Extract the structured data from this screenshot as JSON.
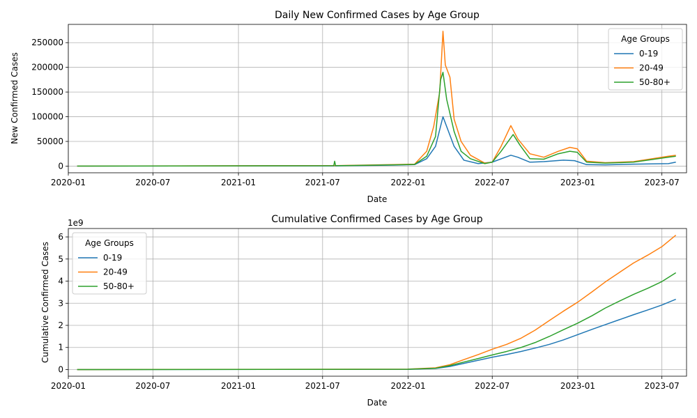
{
  "colors": {
    "c0": "#1f77b4",
    "c1": "#ff7f0e",
    "c2": "#2ca02c"
  },
  "chart_data": [
    {
      "type": "line",
      "title": "Daily New Confirmed Cases by Age Group",
      "xlabel": "Date",
      "ylabel": "New Confirmed Cases",
      "x_start": "2020-01-20",
      "x_end": "2023-07-31",
      "xlim": [
        "2020-01-01",
        "2023-08-23"
      ],
      "ylim": [
        -13500,
        287000
      ],
      "xticks": [
        "2020-01",
        "2020-07",
        "2021-01",
        "2021-07",
        "2022-01",
        "2022-07",
        "2023-01",
        "2023-07"
      ],
      "yticks": [
        0,
        50000,
        100000,
        150000,
        200000,
        250000
      ],
      "ytick_labels": [
        "0",
        "50000",
        "100000",
        "150000",
        "200000",
        "250000"
      ],
      "grid": true,
      "legend": {
        "title": "Age Groups",
        "position": "top-right"
      },
      "series": [
        {
          "name": "0-19",
          "color": "#1f77b4",
          "points": [
            [
              "2020-01-20",
              0
            ],
            [
              "2021-07-27",
              500
            ],
            [
              "2021-12-01",
              2000
            ],
            [
              "2022-01-15",
              3000
            ],
            [
              "2022-02-10",
              15000
            ],
            [
              "2022-03-01",
              40000
            ],
            [
              "2022-03-17",
              100000
            ],
            [
              "2022-03-25",
              80000
            ],
            [
              "2022-04-10",
              40000
            ],
            [
              "2022-05-01",
              12000
            ],
            [
              "2022-06-01",
              5000
            ],
            [
              "2022-07-01",
              8000
            ],
            [
              "2022-08-10",
              22000
            ],
            [
              "2022-08-25",
              18000
            ],
            [
              "2022-09-20",
              8000
            ],
            [
              "2022-10-20",
              9000
            ],
            [
              "2022-12-01",
              12000
            ],
            [
              "2022-12-25",
              11000
            ],
            [
              "2023-01-20",
              3000
            ],
            [
              "2023-03-01",
              2500
            ],
            [
              "2023-05-01",
              4000
            ],
            [
              "2023-07-15",
              5000
            ],
            [
              "2023-07-31",
              8000
            ]
          ]
        },
        {
          "name": "20-49",
          "color": "#ff7f0e",
          "points": [
            [
              "2020-01-20",
              0
            ],
            [
              "2021-07-27",
              1000
            ],
            [
              "2021-12-01",
              3000
            ],
            [
              "2022-01-15",
              4000
            ],
            [
              "2022-02-10",
              30000
            ],
            [
              "2022-02-25",
              80000
            ],
            [
              "2022-03-10",
              150000
            ],
            [
              "2022-03-17",
              273000
            ],
            [
              "2022-03-22",
              205000
            ],
            [
              "2022-04-01",
              180000
            ],
            [
              "2022-04-10",
              95000
            ],
            [
              "2022-04-25",
              50000
            ],
            [
              "2022-05-15",
              22000
            ],
            [
              "2022-06-15",
              6000
            ],
            [
              "2022-07-01",
              8000
            ],
            [
              "2022-07-20",
              40000
            ],
            [
              "2022-08-10",
              82000
            ],
            [
              "2022-08-25",
              55000
            ],
            [
              "2022-09-20",
              25000
            ],
            [
              "2022-10-20",
              18000
            ],
            [
              "2022-11-20",
              30000
            ],
            [
              "2022-12-15",
              38000
            ],
            [
              "2022-12-31",
              35000
            ],
            [
              "2023-01-20",
              10000
            ],
            [
              "2023-03-01",
              7000
            ],
            [
              "2023-05-01",
              9000
            ],
            [
              "2023-07-15",
              20000
            ],
            [
              "2023-07-31",
              22000
            ]
          ]
        },
        {
          "name": "50-80+",
          "color": "#2ca02c",
          "points": [
            [
              "2020-01-20",
              0
            ],
            [
              "2021-07-25",
              800
            ],
            [
              "2021-07-27",
              10000
            ],
            [
              "2021-07-29",
              800
            ],
            [
              "2021-12-01",
              2500
            ],
            [
              "2022-01-15",
              3500
            ],
            [
              "2022-02-10",
              20000
            ],
            [
              "2022-03-01",
              60000
            ],
            [
              "2022-03-12",
              175000
            ],
            [
              "2022-03-17",
              190000
            ],
            [
              "2022-03-25",
              135000
            ],
            [
              "2022-04-10",
              70000
            ],
            [
              "2022-04-25",
              30000
            ],
            [
              "2022-05-15",
              15000
            ],
            [
              "2022-06-15",
              5000
            ],
            [
              "2022-07-01",
              8000
            ],
            [
              "2022-07-20",
              30000
            ],
            [
              "2022-08-15",
              64000
            ],
            [
              "2022-08-30",
              42000
            ],
            [
              "2022-09-20",
              15000
            ],
            [
              "2022-10-20",
              14000
            ],
            [
              "2022-11-20",
              25000
            ],
            [
              "2022-12-15",
              30000
            ],
            [
              "2022-12-31",
              28000
            ],
            [
              "2023-01-20",
              8000
            ],
            [
              "2023-03-01",
              6000
            ],
            [
              "2023-05-01",
              8000
            ],
            [
              "2023-07-15",
              18000
            ],
            [
              "2023-07-31",
              20000
            ]
          ]
        }
      ]
    },
    {
      "type": "line",
      "title": "Cumulative Confirmed Cases by Age Group",
      "xlabel": "Date",
      "ylabel": "Cumulative Confirmed Cases",
      "y_multiplier_label": "1e9",
      "xlim": [
        "2020-01-01",
        "2023-08-23"
      ],
      "ylim": [
        -0.3,
        6.38
      ],
      "xticks": [
        "2020-01",
        "2020-07",
        "2021-01",
        "2021-07",
        "2022-01",
        "2022-07",
        "2023-01",
        "2023-07"
      ],
      "yticks": [
        0,
        1,
        2,
        3,
        4,
        5,
        6
      ],
      "ytick_labels": [
        "0",
        "1",
        "2",
        "3",
        "4",
        "5",
        "6"
      ],
      "grid": true,
      "legend": {
        "title": "Age Groups",
        "position": "top-left"
      },
      "series": [
        {
          "name": "0-19",
          "color": "#1f77b4",
          "points": [
            [
              "2020-01-20",
              0
            ],
            [
              "2021-12-31",
              0.01
            ],
            [
              "2022-03-01",
              0.05
            ],
            [
              "2022-04-01",
              0.14
            ],
            [
              "2022-05-01",
              0.28
            ],
            [
              "2022-06-01",
              0.42
            ],
            [
              "2022-07-01",
              0.56
            ],
            [
              "2022-08-01",
              0.68
            ],
            [
              "2022-09-01",
              0.82
            ],
            [
              "2022-10-01",
              0.97
            ],
            [
              "2022-11-01",
              1.14
            ],
            [
              "2022-12-01",
              1.34
            ],
            [
              "2023-01-01",
              1.58
            ],
            [
              "2023-02-01",
              1.82
            ],
            [
              "2023-03-01",
              2.03
            ],
            [
              "2023-04-01",
              2.26
            ],
            [
              "2023-05-01",
              2.48
            ],
            [
              "2023-06-01",
              2.7
            ],
            [
              "2023-07-01",
              2.92
            ],
            [
              "2023-07-31",
              3.18
            ]
          ]
        },
        {
          "name": "20-49",
          "color": "#ff7f0e",
          "points": [
            [
              "2020-01-20",
              0
            ],
            [
              "2021-12-31",
              0.02
            ],
            [
              "2022-03-01",
              0.08
            ],
            [
              "2022-04-01",
              0.22
            ],
            [
              "2022-05-01",
              0.45
            ],
            [
              "2022-06-01",
              0.68
            ],
            [
              "2022-07-01",
              0.92
            ],
            [
              "2022-08-01",
              1.14
            ],
            [
              "2022-09-01",
              1.42
            ],
            [
              "2022-10-01",
              1.78
            ],
            [
              "2022-11-01",
              2.22
            ],
            [
              "2022-12-01",
              2.64
            ],
            [
              "2023-01-01",
              3.05
            ],
            [
              "2023-02-01",
              3.52
            ],
            [
              "2023-03-01",
              3.96
            ],
            [
              "2023-04-01",
              4.4
            ],
            [
              "2023-05-01",
              4.82
            ],
            [
              "2023-06-01",
              5.18
            ],
            [
              "2023-07-01",
              5.56
            ],
            [
              "2023-07-31",
              6.08
            ]
          ]
        },
        {
          "name": "50-80+",
          "color": "#2ca02c",
          "points": [
            [
              "2020-01-20",
              0
            ],
            [
              "2021-12-31",
              0.015
            ],
            [
              "2022-03-01",
              0.06
            ],
            [
              "2022-04-01",
              0.18
            ],
            [
              "2022-05-01",
              0.34
            ],
            [
              "2022-06-01",
              0.5
            ],
            [
              "2022-07-01",
              0.66
            ],
            [
              "2022-08-01",
              0.82
            ],
            [
              "2022-09-01",
              1.0
            ],
            [
              "2022-10-01",
              1.22
            ],
            [
              "2022-11-01",
              1.5
            ],
            [
              "2022-12-01",
              1.8
            ],
            [
              "2023-01-01",
              2.1
            ],
            [
              "2023-02-01",
              2.44
            ],
            [
              "2023-03-01",
              2.78
            ],
            [
              "2023-04-01",
              3.1
            ],
            [
              "2023-05-01",
              3.4
            ],
            [
              "2023-06-01",
              3.68
            ],
            [
              "2023-07-01",
              3.98
            ],
            [
              "2023-07-31",
              4.38
            ]
          ]
        }
      ]
    }
  ]
}
